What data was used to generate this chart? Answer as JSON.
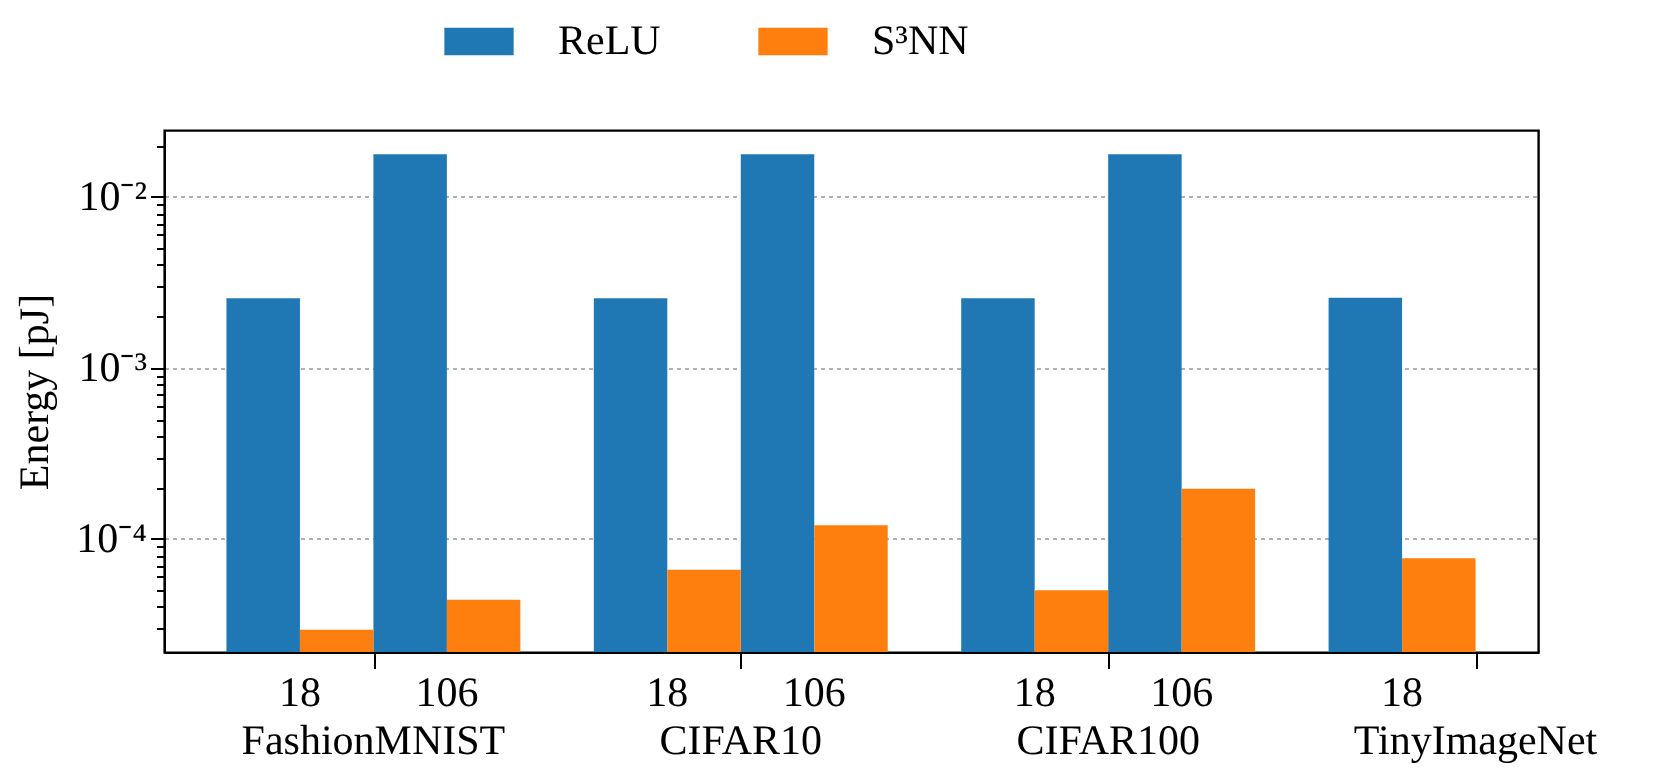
{
  "chart_data": {
    "type": "bar",
    "ylabel": "Energy [pJ]",
    "log": "y",
    "grid": "y",
    "legend": "top",
    "categories": [
      "18",
      "106",
      "18",
      "106",
      "18",
      "106",
      "18"
    ],
    "annotations": [
      "FashionMNIST",
      "CIFAR10",
      "CIFAR100",
      "TinyImageNet"
    ],
    "series": [
      {
        "name": "ReLU",
        "color": "#1f77b4",
        "values": [
          0.00255,
          0.0177,
          0.00255,
          0.0177,
          0.00255,
          0.0177,
          0.00256
        ]
      },
      {
        "name": "S³NN",
        "color": "#ff7f0e",
        "values": [
          2.94e-05,
          4.4e-05,
          6.6e-05,
          0.00012,
          5e-05,
          0.000196,
          7.7e-05
        ]
      }
    ],
    "ylim": [
      2.18e-05,
      0.0245
    ],
    "yticks": [
      {
        "value": 3e-05,
        "label": null
      },
      {
        "value": 4e-05,
        "label": null
      },
      {
        "value": 5e-05,
        "label": null
      },
      {
        "value": 6e-05,
        "label": null
      },
      {
        "value": 7e-05,
        "label": null
      },
      {
        "value": 8e-05,
        "label": null
      },
      {
        "value": 9e-05,
        "label": null
      },
      {
        "value": 0.0001,
        "label": "10⁻⁴"
      },
      {
        "value": 0.0002,
        "label": null
      },
      {
        "value": 0.0003,
        "label": null
      },
      {
        "value": 0.0004,
        "label": null
      },
      {
        "value": 0.0005,
        "label": null
      },
      {
        "value": 0.0006,
        "label": null
      },
      {
        "value": 0.0007,
        "label": null
      },
      {
        "value": 0.0008,
        "label": null
      },
      {
        "value": 0.0009,
        "label": null
      },
      {
        "value": 0.001,
        "label": "10⁻³"
      },
      {
        "value": 0.002,
        "label": null
      },
      {
        "value": 0.003,
        "label": null
      },
      {
        "value": 0.004,
        "label": null
      },
      {
        "value": 0.005,
        "label": null
      },
      {
        "value": 0.006,
        "label": null
      },
      {
        "value": 0.007,
        "label": null
      },
      {
        "value": 0.008,
        "label": null
      },
      {
        "value": 0.009,
        "label": null
      },
      {
        "value": 0.01,
        "label": "10⁻²"
      },
      {
        "value": 0.02,
        "label": null
      }
    ]
  }
}
